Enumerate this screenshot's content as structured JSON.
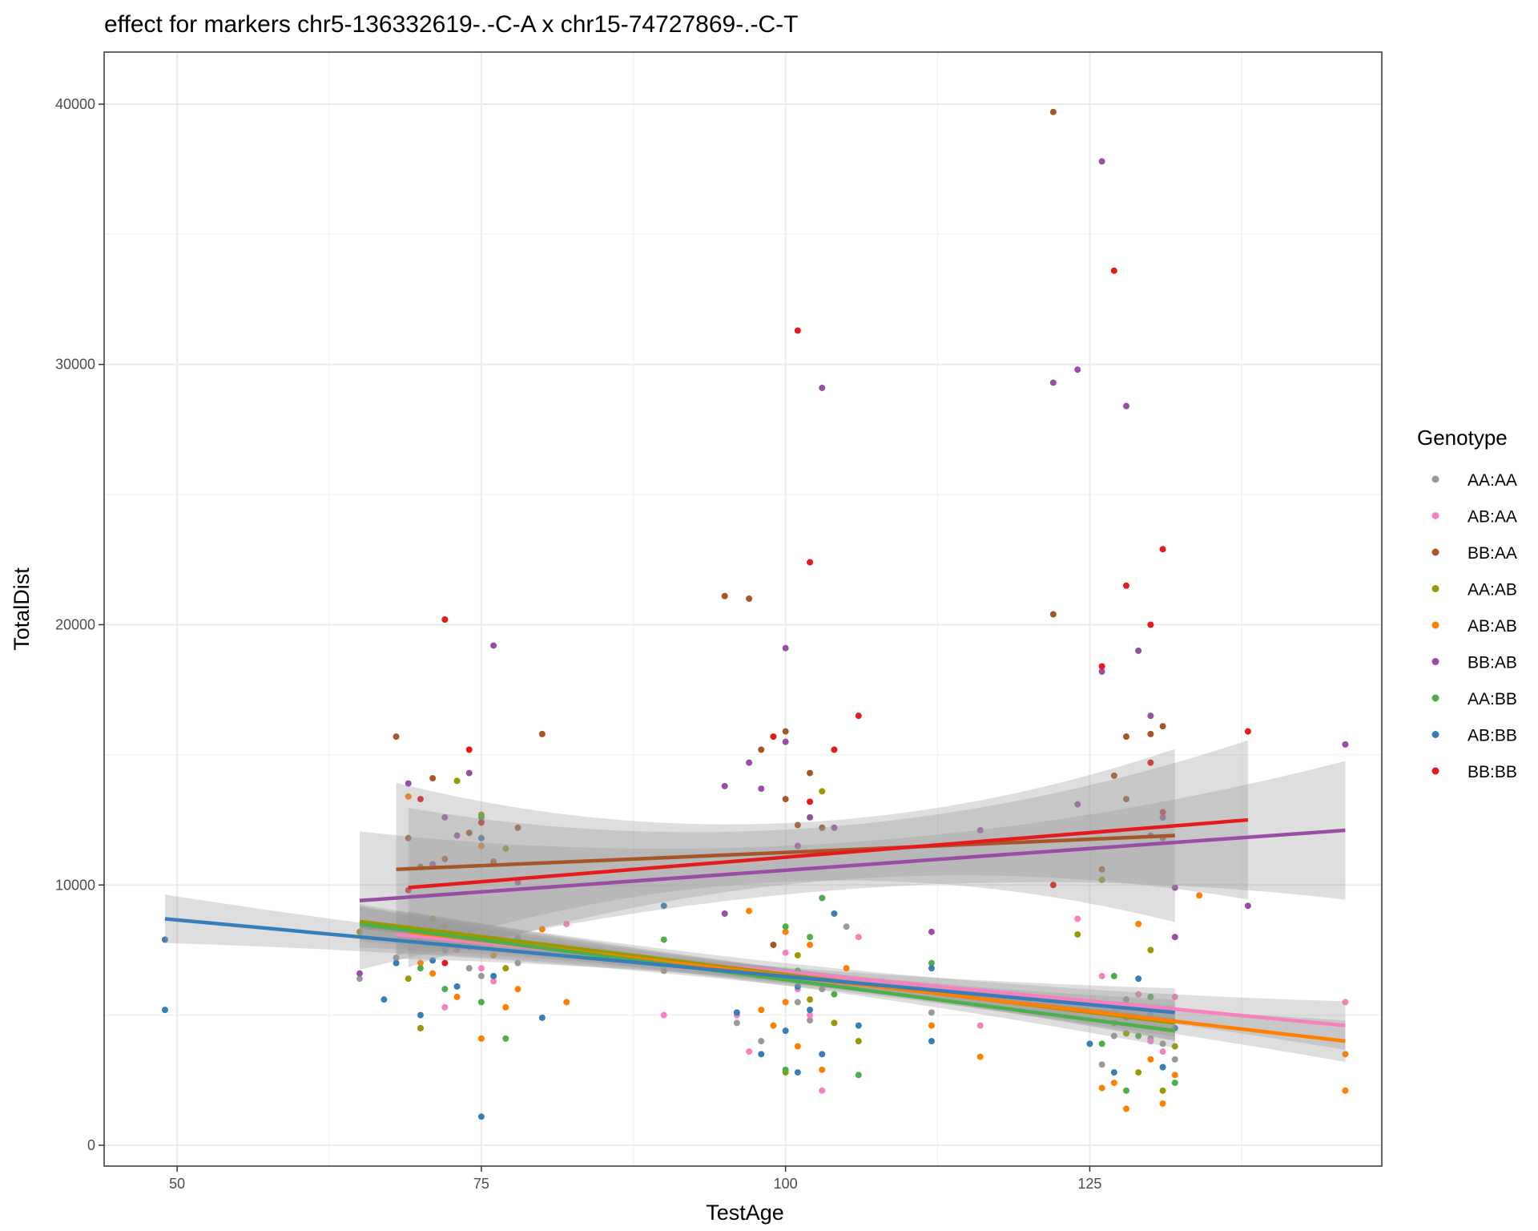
{
  "chart_data": {
    "type": "scatter",
    "title": "effect for markers chr5-136332619-.-C-A x chr15-74727869-.-C-T",
    "xlabel": "TestAge",
    "ylabel": "TotalDist",
    "xlim": [
      44,
      149
    ],
    "ylim": [
      -800,
      42000
    ],
    "x_ticks": [
      50,
      75,
      100,
      125
    ],
    "y_ticks": [
      0,
      10000,
      20000,
      30000,
      40000
    ],
    "grid": true,
    "legend": {
      "title": "Genotype",
      "position": "right"
    },
    "series": [
      {
        "name": "AA:AA",
        "color": "#999999",
        "fit": [
          [
            65,
            8400
          ],
          [
            132,
            4800
          ]
        ],
        "ci": 600,
        "points": [
          [
            65,
            6400
          ],
          [
            68,
            7200
          ],
          [
            70,
            8200
          ],
          [
            72,
            7500
          ],
          [
            74,
            6800
          ],
          [
            75,
            6500
          ],
          [
            78,
            7000
          ],
          [
            90,
            6700
          ],
          [
            96,
            4700
          ],
          [
            98,
            4000
          ],
          [
            100,
            6500
          ],
          [
            101,
            5500
          ],
          [
            102,
            4800
          ],
          [
            103,
            6000
          ],
          [
            105,
            8400
          ],
          [
            112,
            5100
          ],
          [
            126,
            3100
          ],
          [
            127,
            4200
          ],
          [
            128,
            5600
          ],
          [
            130,
            4100
          ],
          [
            131,
            3900
          ],
          [
            132,
            3300
          ]
        ]
      },
      {
        "name": "AB:AA",
        "color": "#F781BF",
        "fit": [
          [
            68,
            8100
          ],
          [
            146,
            4600
          ]
        ],
        "ci": 700,
        "points": [
          [
            68,
            7000
          ],
          [
            70,
            4500
          ],
          [
            72,
            5300
          ],
          [
            73,
            7500
          ],
          [
            75,
            6800
          ],
          [
            76,
            6300
          ],
          [
            78,
            8000
          ],
          [
            82,
            8500
          ],
          [
            90,
            5000
          ],
          [
            96,
            5000
          ],
          [
            97,
            3600
          ],
          [
            100,
            7400
          ],
          [
            101,
            6000
          ],
          [
            102,
            5000
          ],
          [
            103,
            2100
          ],
          [
            105,
            6100
          ],
          [
            106,
            8000
          ],
          [
            116,
            4600
          ],
          [
            124,
            8700
          ],
          [
            126,
            6500
          ],
          [
            127,
            5100
          ],
          [
            129,
            5800
          ],
          [
            130,
            4000
          ],
          [
            131,
            3600
          ],
          [
            132,
            5700
          ],
          [
            146,
            5500
          ]
        ]
      },
      {
        "name": "BB:AA",
        "color": "#A65628",
        "fit": [
          [
            68,
            10600
          ],
          [
            132,
            11900
          ]
        ],
        "ci": 2500,
        "points": [
          [
            68,
            15700
          ],
          [
            69,
            11800
          ],
          [
            70,
            10700
          ],
          [
            71,
            14100
          ],
          [
            72,
            11000
          ],
          [
            74,
            12000
          ],
          [
            76,
            10900
          ],
          [
            78,
            12200
          ],
          [
            80,
            15800
          ],
          [
            95,
            21100
          ],
          [
            97,
            21000
          ],
          [
            98,
            15200
          ],
          [
            99,
            7700
          ],
          [
            100,
            15900
          ],
          [
            100,
            13300
          ],
          [
            101,
            12300
          ],
          [
            102,
            14300
          ],
          [
            103,
            12200
          ],
          [
            122,
            39700
          ],
          [
            122,
            20400
          ],
          [
            126,
            10600
          ],
          [
            127,
            14200
          ],
          [
            128,
            15700
          ],
          [
            128,
            13300
          ],
          [
            130,
            15800
          ],
          [
            131,
            16100
          ],
          [
            131,
            11800
          ]
        ]
      },
      {
        "name": "AA:AB",
        "color": "#999900",
        "fit": [
          [
            65,
            8600
          ],
          [
            132,
            4700
          ]
        ],
        "ci": 500,
        "points": [
          [
            65,
            8200
          ],
          [
            69,
            6400
          ],
          [
            70,
            4500
          ],
          [
            71,
            8700
          ],
          [
            73,
            14000
          ],
          [
            74,
            7600
          ],
          [
            75,
            12700
          ],
          [
            77,
            11400
          ],
          [
            77,
            6800
          ],
          [
            100,
            2800
          ],
          [
            101,
            7300
          ],
          [
            102,
            5600
          ],
          [
            103,
            13600
          ],
          [
            104,
            4700
          ],
          [
            106,
            4000
          ],
          [
            124,
            8100
          ],
          [
            126,
            10200
          ],
          [
            127,
            4700
          ],
          [
            128,
            4300
          ],
          [
            129,
            2800
          ],
          [
            130,
            7500
          ],
          [
            131,
            2100
          ],
          [
            132,
            3800
          ]
        ]
      },
      {
        "name": "AB:AB",
        "color": "#FF7F00",
        "fit": [
          [
            69,
            8200
          ],
          [
            146,
            4000
          ]
        ],
        "ci": 600,
        "points": [
          [
            69,
            13400
          ],
          [
            70,
            7000
          ],
          [
            71,
            6600
          ],
          [
            72,
            8400
          ],
          [
            73,
            5700
          ],
          [
            75,
            4100
          ],
          [
            75,
            11500
          ],
          [
            76,
            7300
          ],
          [
            77,
            5300
          ],
          [
            78,
            6000
          ],
          [
            80,
            8300
          ],
          [
            82,
            5500
          ],
          [
            97,
            9000
          ],
          [
            98,
            5200
          ],
          [
            99,
            4600
          ],
          [
            100,
            5500
          ],
          [
            100,
            8200
          ],
          [
            101,
            3800
          ],
          [
            102,
            7700
          ],
          [
            103,
            2900
          ],
          [
            104,
            6300
          ],
          [
            105,
            6800
          ],
          [
            112,
            4600
          ],
          [
            116,
            3400
          ],
          [
            126,
            2200
          ],
          [
            127,
            2400
          ],
          [
            128,
            1400
          ],
          [
            129,
            8500
          ],
          [
            130,
            3300
          ],
          [
            131,
            1600
          ],
          [
            132,
            2700
          ],
          [
            134,
            9600
          ],
          [
            146,
            2100
          ],
          [
            146,
            3500
          ]
        ]
      },
      {
        "name": "BB:AB",
        "color": "#984EA3",
        "fit": [
          [
            65,
            9400
          ],
          [
            146,
            12100
          ]
        ],
        "ci": 2000,
        "points": [
          [
            65,
            6600
          ],
          [
            69,
            13900
          ],
          [
            71,
            10800
          ],
          [
            72,
            12600
          ],
          [
            73,
            11900
          ],
          [
            74,
            14300
          ],
          [
            76,
            19200
          ],
          [
            78,
            10100
          ],
          [
            95,
            13800
          ],
          [
            95,
            8900
          ],
          [
            97,
            14700
          ],
          [
            98,
            13700
          ],
          [
            100,
            19100
          ],
          [
            100,
            15500
          ],
          [
            101,
            11500
          ],
          [
            102,
            12600
          ],
          [
            103,
            29100
          ],
          [
            104,
            12200
          ],
          [
            112,
            8200
          ],
          [
            116,
            12100
          ],
          [
            122,
            29300
          ],
          [
            124,
            29800
          ],
          [
            124,
            13100
          ],
          [
            126,
            37800
          ],
          [
            126,
            18200
          ],
          [
            128,
            28400
          ],
          [
            129,
            19000
          ],
          [
            130,
            16500
          ],
          [
            130,
            11900
          ],
          [
            131,
            12600
          ],
          [
            132,
            9900
          ],
          [
            132,
            8000
          ],
          [
            138,
            9200
          ],
          [
            146,
            15400
          ]
        ]
      },
      {
        "name": "AA:BB",
        "color": "#4DAF4A",
        "fit": [
          [
            65,
            8500
          ],
          [
            132,
            4400
          ]
        ],
        "ci": 500,
        "points": [
          [
            70,
            6800
          ],
          [
            72,
            6000
          ],
          [
            75,
            5500
          ],
          [
            75,
            12600
          ],
          [
            77,
            4100
          ],
          [
            90,
            7900
          ],
          [
            100,
            8400
          ],
          [
            100,
            2900
          ],
          [
            101,
            6700
          ],
          [
            102,
            8000
          ],
          [
            103,
            9500
          ],
          [
            104,
            5800
          ],
          [
            106,
            2700
          ],
          [
            112,
            7000
          ],
          [
            126,
            3900
          ],
          [
            127,
            6500
          ],
          [
            128,
            2100
          ],
          [
            129,
            4200
          ],
          [
            130,
            5700
          ],
          [
            131,
            3000
          ],
          [
            132,
            2400
          ]
        ]
      },
      {
        "name": "AB:BB",
        "color": "#377EB8",
        "fit": [
          [
            49,
            8700
          ],
          [
            132,
            5100
          ]
        ],
        "ci": 700,
        "points": [
          [
            49,
            7900
          ],
          [
            49,
            5200
          ],
          [
            67,
            5600
          ],
          [
            68,
            7000
          ],
          [
            70,
            5000
          ],
          [
            71,
            7100
          ],
          [
            73,
            6100
          ],
          [
            75,
            1100
          ],
          [
            75,
            11800
          ],
          [
            76,
            6500
          ],
          [
            78,
            7900
          ],
          [
            80,
            4900
          ],
          [
            90,
            9200
          ],
          [
            96,
            5100
          ],
          [
            98,
            3500
          ],
          [
            100,
            4400
          ],
          [
            101,
            2800
          ],
          [
            101,
            6100
          ],
          [
            102,
            5200
          ],
          [
            103,
            3500
          ],
          [
            104,
            8900
          ],
          [
            106,
            4600
          ],
          [
            112,
            6800
          ],
          [
            112,
            4000
          ],
          [
            125,
            3900
          ],
          [
            127,
            2800
          ],
          [
            128,
            4900
          ],
          [
            129,
            6400
          ],
          [
            130,
            5000
          ],
          [
            131,
            3000
          ],
          [
            132,
            4500
          ]
        ]
      },
      {
        "name": "BB:BB",
        "color": "#E41A1C",
        "fit": [
          [
            69,
            9900
          ],
          [
            138,
            12500
          ]
        ],
        "ci": 2300,
        "points": [
          [
            69,
            9800
          ],
          [
            70,
            13300
          ],
          [
            72,
            20200
          ],
          [
            72,
            7000
          ],
          [
            74,
            15200
          ],
          [
            75,
            12400
          ],
          [
            99,
            15700
          ],
          [
            101,
            31300
          ],
          [
            102,
            22400
          ],
          [
            102,
            13200
          ],
          [
            104,
            15200
          ],
          [
            106,
            16500
          ],
          [
            122,
            10000
          ],
          [
            126,
            18400
          ],
          [
            127,
            33600
          ],
          [
            128,
            21500
          ],
          [
            130,
            20000
          ],
          [
            130,
            14700
          ],
          [
            131,
            22900
          ],
          [
            131,
            12800
          ],
          [
            138,
            15900
          ]
        ]
      }
    ]
  }
}
